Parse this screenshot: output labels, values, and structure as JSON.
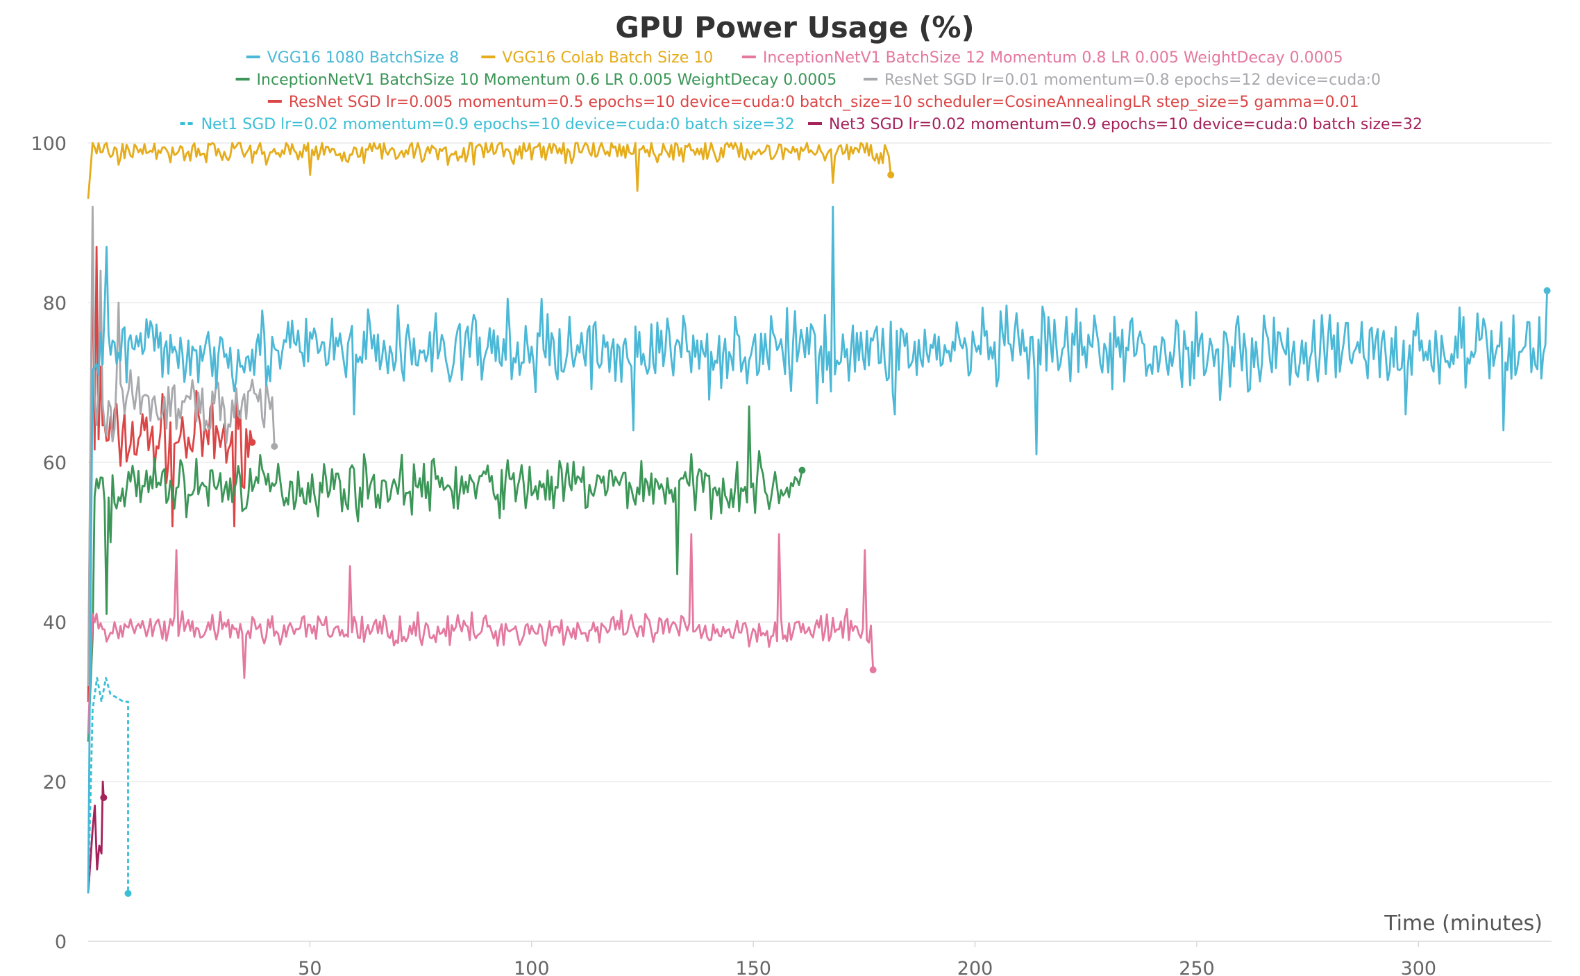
{
  "chart_data": {
    "type": "line",
    "title": "GPU Power Usage (%)",
    "xlabel": "Time (minutes)",
    "ylabel": "",
    "xlim": [
      0,
      330
    ],
    "ylim": [
      0,
      100
    ],
    "x_ticks": [
      50,
      100,
      150,
      200,
      250,
      300
    ],
    "y_ticks": [
      0,
      20,
      40,
      60,
      80,
      100
    ],
    "grid": true,
    "legend_position": "top",
    "series": [
      {
        "name": "VGG16 1080 BatchSize 8",
        "color": "#4ab8d6",
        "dash": false,
        "start": [
          0,
          6
        ],
        "x_end": 329,
        "base": 74,
        "amp": 4.5,
        "spikes": [
          [
            4,
            87
          ],
          [
            25,
            70
          ],
          [
            60,
            66
          ],
          [
            123,
            64
          ],
          [
            168,
            92
          ],
          [
            182,
            66
          ],
          [
            214,
            61
          ],
          [
            297,
            66
          ],
          [
            319,
            64
          ],
          [
            329,
            81.5
          ]
        ]
      },
      {
        "name": "VGG16 Colab Batch Size 10",
        "color": "#e5ac1b",
        "dash": false,
        "start": [
          0,
          93
        ],
        "x_end": 181,
        "base": 99,
        "amp": 1.4,
        "spikes": [
          [
            1,
            100
          ],
          [
            50,
            96
          ],
          [
            124,
            94
          ],
          [
            168,
            95
          ],
          [
            181,
            96
          ]
        ]
      },
      {
        "name": "InceptionNetV1 BatchSize 12 Momentum 0.8 LR 0.005 WeightDecay 0.0005",
        "color": "#e4789f",
        "dash": false,
        "start": [
          0,
          26
        ],
        "x_end": 177,
        "base": 39,
        "amp": 1.8,
        "spikes": [
          [
            1,
            41
          ],
          [
            20,
            49
          ],
          [
            35,
            33
          ],
          [
            59,
            47
          ],
          [
            136,
            51
          ],
          [
            156,
            51
          ],
          [
            175,
            49
          ],
          [
            177,
            34
          ]
        ]
      },
      {
        "name": "InceptionNetV1 BatchSize 10 Momentum 0.6 LR 0.005 WeightDecay 0.0005",
        "color": "#3b9657",
        "dash": false,
        "start": [
          0,
          25
        ],
        "x_end": 161,
        "base": 57,
        "amp": 3.2,
        "spikes": [
          [
            1,
            38
          ],
          [
            4,
            41
          ],
          [
            5,
            50
          ],
          [
            12,
            55
          ],
          [
            133,
            46
          ],
          [
            149,
            67
          ],
          [
            161,
            59
          ]
        ]
      },
      {
        "name": "ResNet SGD lr=0.01 momentum=0.8 epochs=12 device=cuda:0",
        "color": "#a8a9ad",
        "dash": false,
        "start": [
          0,
          32
        ],
        "x_end": 42,
        "base": 67,
        "amp": 3.5,
        "spikes": [
          [
            1,
            92
          ],
          [
            3,
            84
          ],
          [
            7,
            80
          ],
          [
            42,
            62
          ]
        ]
      },
      {
        "name": "ResNet SGD lr=0.005 momentum=0.5 epochs=10 device=cuda:0 batch_size=10 scheduler=CosineAnnealingLR step_size=5 gamma=0.01",
        "color": "#dc4545",
        "dash": false,
        "start": [
          0,
          30
        ],
        "x_end": 37,
        "base": 63,
        "amp": 4.5,
        "spikes": [
          [
            1,
            89
          ],
          [
            2,
            87
          ],
          [
            3,
            72
          ],
          [
            19,
            52
          ],
          [
            33,
            52
          ],
          [
            37,
            62.5
          ]
        ]
      },
      {
        "name": "Net1 SGD lr=0.02 momentum=0.9 epochs=10 device=cuda:0 batch  size=32",
        "color": "#3bbfd6",
        "dash": true,
        "points": [
          [
            0,
            6
          ],
          [
            1,
            29
          ],
          [
            2,
            33
          ],
          [
            3,
            30
          ],
          [
            4,
            33
          ],
          [
            5,
            31
          ],
          [
            8,
            30
          ],
          [
            9,
            30
          ],
          [
            9,
            6
          ]
        ]
      },
      {
        "name": "Net3 SGD lr=0.02 momentum=0.9 epochs=10 device=cuda:0 batch  size=32",
        "color": "#a4215a",
        "dash": false,
        "points": [
          [
            0,
            6
          ],
          [
            1,
            14
          ],
          [
            1.5,
            17
          ],
          [
            2,
            9
          ],
          [
            2.5,
            12
          ],
          [
            3,
            11
          ],
          [
            3.3,
            20
          ],
          [
            3.5,
            18
          ]
        ]
      }
    ]
  }
}
